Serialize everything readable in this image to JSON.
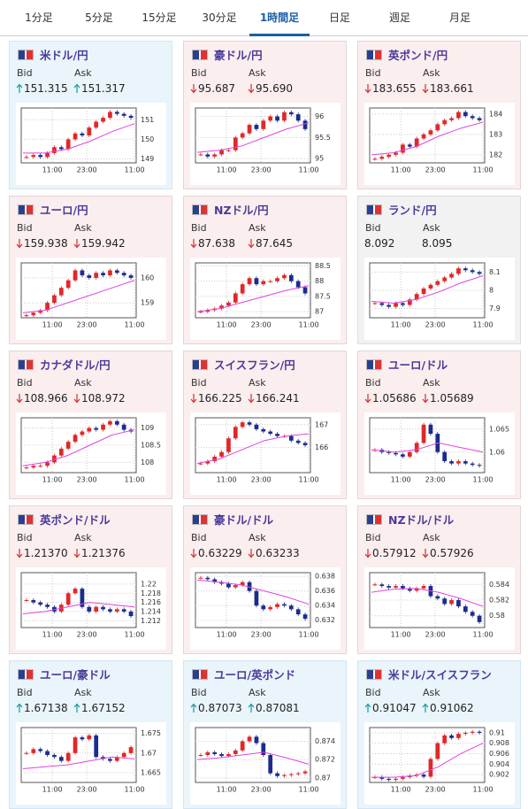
{
  "tabs": [
    "1分足",
    "5分足",
    "15分足",
    "30分足",
    "1時間足",
    "日足",
    "週足",
    "月足"
  ],
  "active_tab": 4,
  "bid_label": "Bid",
  "ask_label": "Ask",
  "cards": [
    {
      "name": "米ドル/円",
      "bid": "151.315",
      "ask": "151.317",
      "direction": "up",
      "chart": {
        "type": "candlestick",
        "ylim": [
          148.8,
          151.6
        ],
        "yticks": [
          149,
          150,
          151
        ],
        "x": [
          "11:00",
          "23:00",
          "11:00"
        ],
        "closes": [
          149.1,
          149.2,
          149.1,
          149.3,
          149.6,
          149.5,
          150.0,
          150.3,
          150.2,
          150.6,
          150.9,
          151.1,
          151.4,
          151.3,
          151.2,
          151.1
        ],
        "ma": [
          149.3,
          149.3,
          149.5,
          149.9,
          150.4,
          150.8
        ]
      }
    },
    {
      "name": "豪ドル/円",
      "bid": "95.687",
      "ask": "95.690",
      "direction": "down",
      "chart": {
        "type": "candlestick",
        "ylim": [
          94.9,
          96.2
        ],
        "yticks": [
          95,
          95.5,
          96
        ],
        "x": [
          "11:00",
          "23:00",
          "11:00"
        ],
        "closes": [
          95.1,
          95.05,
          95.1,
          95.2,
          95.2,
          95.5,
          95.6,
          95.8,
          95.7,
          95.9,
          96.0,
          95.9,
          96.1,
          96.05,
          95.9,
          95.7
        ],
        "ma": [
          95.15,
          95.2,
          95.3,
          95.5,
          95.7,
          95.85
        ]
      }
    },
    {
      "name": "英ポンド/円",
      "bid": "183.655",
      "ask": "183.661",
      "direction": "down",
      "chart": {
        "type": "candlestick",
        "ylim": [
          181.6,
          184.3
        ],
        "yticks": [
          182,
          183,
          184
        ],
        "x": [
          "11:00",
          "23:00",
          "11:00"
        ],
        "closes": [
          181.8,
          181.9,
          182.0,
          182.1,
          182.5,
          182.4,
          182.8,
          183.0,
          183.2,
          183.5,
          183.7,
          183.8,
          184.1,
          183.9,
          183.8,
          183.7
        ],
        "ma": [
          182.0,
          182.1,
          182.4,
          182.9,
          183.3,
          183.6
        ]
      }
    },
    {
      "name": "ユーロ/円",
      "bid": "159.938",
      "ask": "159.942",
      "direction": "down",
      "chart": {
        "type": "candlestick",
        "ylim": [
          158.4,
          160.6
        ],
        "yticks": [
          159,
          160
        ],
        "x": [
          "11:00",
          "23:00",
          "11:00"
        ],
        "closes": [
          158.5,
          158.6,
          158.7,
          159.0,
          159.3,
          159.6,
          159.9,
          160.3,
          160.1,
          160.0,
          160.2,
          160.1,
          160.3,
          160.2,
          160.1,
          160.0
        ],
        "ma": [
          158.6,
          158.7,
          159.0,
          159.3,
          159.6,
          159.9
        ]
      }
    },
    {
      "name": "NZドル/円",
      "bid": "87.638",
      "ask": "87.645",
      "direction": "down",
      "chart": {
        "type": "candlestick",
        "ylim": [
          86.8,
          88.6
        ],
        "yticks": [
          87,
          87.5,
          88,
          88.5
        ],
        "x": [
          "11:00",
          "23:00",
          "11:00"
        ],
        "closes": [
          87.0,
          87.05,
          87.1,
          87.2,
          87.3,
          87.6,
          87.9,
          88.1,
          87.9,
          88.0,
          88.0,
          88.1,
          88.2,
          88.0,
          87.8,
          87.6
        ],
        "ma": [
          87.0,
          87.1,
          87.3,
          87.5,
          87.7,
          87.85
        ]
      }
    },
    {
      "name": "ランド/円",
      "bid": "8.092",
      "ask": "8.095",
      "direction": "flat",
      "chart": {
        "type": "candlestick",
        "ylim": [
          7.85,
          8.15
        ],
        "yticks": [
          7.9,
          8,
          8.1
        ],
        "x": [
          "11:00",
          "23:00",
          "11:00"
        ],
        "closes": [
          7.93,
          7.92,
          7.91,
          7.93,
          7.92,
          7.95,
          7.98,
          8.01,
          8.03,
          8.05,
          8.07,
          8.09,
          8.12,
          8.11,
          8.1,
          8.09
        ],
        "ma": [
          7.94,
          7.93,
          7.95,
          7.99,
          8.04,
          8.08
        ]
      }
    },
    {
      "name": "カナダドル/円",
      "bid": "108.966",
      "ask": "108.972",
      "direction": "down",
      "chart": {
        "type": "candlestick",
        "ylim": [
          107.7,
          109.3
        ],
        "yticks": [
          108,
          108.5,
          109
        ],
        "x": [
          "11:00",
          "23:00",
          "11:00"
        ],
        "closes": [
          107.85,
          107.9,
          107.9,
          108.0,
          108.2,
          108.4,
          108.6,
          108.8,
          108.9,
          109.0,
          108.95,
          109.1,
          109.2,
          109.1,
          108.95,
          108.9
        ],
        "ma": [
          107.9,
          108.0,
          108.2,
          108.5,
          108.8,
          108.95
        ]
      }
    },
    {
      "name": "スイスフラン/円",
      "bid": "166.225",
      "ask": "166.241",
      "direction": "down",
      "chart": {
        "type": "candlestick",
        "ylim": [
          164.9,
          167.3
        ],
        "yticks": [
          166,
          167
        ],
        "x": [
          "11:00",
          "23:00",
          "11:00"
        ],
        "closes": [
          165.3,
          165.4,
          165.6,
          165.8,
          166.4,
          166.9,
          167.1,
          167.0,
          166.8,
          166.7,
          166.6,
          166.5,
          166.5,
          166.3,
          166.2,
          166.1
        ],
        "ma": [
          165.3,
          165.5,
          165.9,
          166.3,
          166.5,
          166.6
        ]
      }
    },
    {
      "name": "ユーロ/ドル",
      "bid": "1.05686",
      "ask": "1.05689",
      "direction": "down",
      "chart": {
        "type": "candlestick",
        "ylim": [
          1.0555,
          1.0675
        ],
        "yticks": [
          1.06,
          1.065
        ],
        "x": [
          "11:00",
          "23:00",
          "11:00"
        ],
        "closes": [
          1.0605,
          1.06,
          1.0598,
          1.0595,
          1.059,
          1.06,
          1.062,
          1.066,
          1.064,
          1.06,
          1.058,
          1.0575,
          1.058,
          1.0575,
          1.0572,
          1.057
        ],
        "ma": [
          1.0605,
          1.06,
          1.0605,
          1.062,
          1.061,
          1.06
        ]
      }
    },
    {
      "name": "英ポンド/ドル",
      "bid": "1.21370",
      "ask": "1.21376",
      "direction": "down",
      "chart": {
        "type": "candlestick",
        "ylim": [
          1.2105,
          1.2225
        ],
        "yticks": [
          1.212,
          1.214,
          1.216,
          1.218,
          1.22
        ],
        "x": [
          "11:00",
          "23:00",
          "11:00"
        ],
        "closes": [
          1.2165,
          1.216,
          1.2155,
          1.215,
          1.214,
          1.2155,
          1.218,
          1.219,
          1.215,
          1.214,
          1.215,
          1.2145,
          1.214,
          1.2145,
          1.214,
          1.213
        ],
        "ma": [
          1.2135,
          1.214,
          1.215,
          1.216,
          1.2155,
          1.215
        ]
      }
    },
    {
      "name": "豪ドル/ドル",
      "bid": "0.63229",
      "ask": "0.63233",
      "direction": "down",
      "chart": {
        "type": "candlestick",
        "ylim": [
          0.631,
          0.6385
        ],
        "yticks": [
          0.632,
          0.634,
          0.636,
          0.638
        ],
        "x": [
          "11:00",
          "23:00",
          "11:00"
        ],
        "closes": [
          0.6378,
          0.6376,
          0.6372,
          0.637,
          0.6365,
          0.6368,
          0.6372,
          0.636,
          0.634,
          0.6335,
          0.6338,
          0.6342,
          0.634,
          0.6335,
          0.6328,
          0.6322
        ],
        "ma": [
          0.6375,
          0.6372,
          0.6368,
          0.636,
          0.6352,
          0.6342
        ]
      }
    },
    {
      "name": "NZドル/ドル",
      "bid": "0.57912",
      "ask": "0.57926",
      "direction": "down",
      "chart": {
        "type": "candlestick",
        "ylim": [
          0.5785,
          0.5855
        ],
        "yticks": [
          0.58,
          0.582,
          0.584
        ],
        "x": [
          "11:00",
          "23:00",
          "11:00"
        ],
        "closes": [
          0.584,
          0.5838,
          0.5836,
          0.5838,
          0.5835,
          0.5832,
          0.5835,
          0.5838,
          0.5825,
          0.5822,
          0.5815,
          0.582,
          0.5812,
          0.5805,
          0.58,
          0.5792
        ],
        "ma": [
          0.583,
          0.5834,
          0.5835,
          0.583,
          0.5822,
          0.5812
        ]
      }
    },
    {
      "name": "ユーロ/豪ドル",
      "bid": "1.67138",
      "ask": "1.67152",
      "direction": "up",
      "chart": {
        "type": "candlestick",
        "ylim": [
          1.6625,
          1.6765
        ],
        "yticks": [
          1.665,
          1.67,
          1.675
        ],
        "x": [
          "11:00",
          "23:00",
          "11:00"
        ],
        "closes": [
          1.67,
          1.671,
          1.6705,
          1.6695,
          1.669,
          1.668,
          1.67,
          1.674,
          1.6735,
          1.6745,
          1.669,
          1.6685,
          1.668,
          1.669,
          1.67,
          1.6715
        ],
        "ma": [
          1.666,
          1.6665,
          1.667,
          1.668,
          1.669,
          1.6685
        ]
      }
    },
    {
      "name": "ユーロ/英ポンド",
      "bid": "0.87073",
      "ask": "0.87081",
      "direction": "up",
      "chart": {
        "type": "candlestick",
        "ylim": [
          0.8695,
          0.8755
        ],
        "yticks": [
          0.87,
          0.872,
          0.874
        ],
        "x": [
          "11:00",
          "23:00",
          "11:00"
        ],
        "closes": [
          0.8725,
          0.8728,
          0.8726,
          0.8724,
          0.8726,
          0.873,
          0.874,
          0.8745,
          0.8738,
          0.8725,
          0.8705,
          0.8702,
          0.8703,
          0.8704,
          0.8705,
          0.8707
        ],
        "ma": [
          0.872,
          0.8722,
          0.8725,
          0.8728,
          0.8722,
          0.8715
        ]
      }
    },
    {
      "name": "米ドル/スイスフラン",
      "bid": "0.91047",
      "ask": "0.91062",
      "direction": "up",
      "chart": {
        "type": "candlestick",
        "ylim": [
          0.9005,
          0.911
        ],
        "yticks": [
          0.902,
          0.904,
          0.906,
          0.908,
          0.91
        ],
        "x": [
          "11:00",
          "23:00",
          "11:00"
        ],
        "closes": [
          0.9015,
          0.9012,
          0.901,
          0.9012,
          0.9015,
          0.9018,
          0.902,
          0.9016,
          0.905,
          0.908,
          0.9095,
          0.909,
          0.9098,
          0.91,
          0.9102,
          0.91
        ],
        "ma": [
          0.9015,
          0.9015,
          0.9018,
          0.9035,
          0.906,
          0.908
        ]
      }
    }
  ]
}
